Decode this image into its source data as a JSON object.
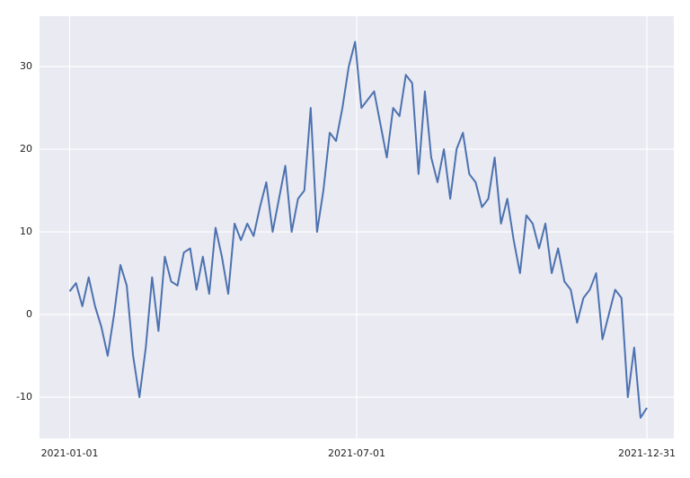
{
  "chart_data": {
    "type": "line",
    "x": [
      "2021-01-01",
      "2021-01-05",
      "2021-01-09",
      "2021-01-13",
      "2021-01-17",
      "2021-01-21",
      "2021-01-25",
      "2021-01-29",
      "2021-02-02",
      "2021-02-06",
      "2021-02-10",
      "2021-02-14",
      "2021-02-18",
      "2021-02-22",
      "2021-02-26",
      "2021-03-02",
      "2021-03-06",
      "2021-03-10",
      "2021-03-14",
      "2021-03-18",
      "2021-03-22",
      "2021-03-26",
      "2021-03-30",
      "2021-04-03",
      "2021-04-07",
      "2021-04-11",
      "2021-04-15",
      "2021-04-19",
      "2021-04-23",
      "2021-04-27",
      "2021-05-01",
      "2021-05-05",
      "2021-05-09",
      "2021-05-13",
      "2021-05-17",
      "2021-05-21",
      "2021-05-25",
      "2021-05-29",
      "2021-06-02",
      "2021-06-06",
      "2021-06-10",
      "2021-06-14",
      "2021-06-18",
      "2021-06-22",
      "2021-06-26",
      "2021-06-30",
      "2021-07-04",
      "2021-07-08",
      "2021-07-12",
      "2021-07-16",
      "2021-07-20",
      "2021-07-24",
      "2021-07-28",
      "2021-08-01",
      "2021-08-05",
      "2021-08-09",
      "2021-08-13",
      "2021-08-17",
      "2021-08-21",
      "2021-08-25",
      "2021-08-29",
      "2021-09-02",
      "2021-09-06",
      "2021-09-10",
      "2021-09-14",
      "2021-09-18",
      "2021-09-22",
      "2021-09-26",
      "2021-09-30",
      "2021-10-04",
      "2021-10-08",
      "2021-10-12",
      "2021-10-16",
      "2021-10-20",
      "2021-10-24",
      "2021-10-28",
      "2021-11-01",
      "2021-11-05",
      "2021-11-09",
      "2021-11-13",
      "2021-11-17",
      "2021-11-21",
      "2021-11-25",
      "2021-11-29",
      "2021-12-03",
      "2021-12-07",
      "2021-12-11",
      "2021-12-15",
      "2021-12-19",
      "2021-12-23",
      "2021-12-27",
      "2021-12-31"
    ],
    "series": [
      {
        "color": "#4c72b0",
        "values": [
          2.8,
          3.8,
          1,
          4.5,
          1,
          -1.5,
          -5,
          0,
          6,
          3.5,
          -5,
          -10,
          -4,
          4.5,
          -2,
          7,
          4,
          3.5,
          7.5,
          8,
          3,
          7,
          2.5,
          10.5,
          7,
          2.5,
          11,
          9,
          11,
          9.5,
          13,
          16,
          10,
          14,
          18,
          10,
          14,
          15,
          25,
          10,
          15,
          22,
          21,
          25,
          30,
          33,
          25,
          26,
          27,
          23,
          19,
          25,
          24,
          29,
          28,
          17,
          27,
          19,
          16,
          20,
          14,
          20,
          22,
          17,
          16,
          13,
          14,
          19,
          11,
          14,
          9,
          5,
          12,
          11,
          8,
          11,
          5,
          8,
          4,
          3,
          -1,
          2,
          3,
          5,
          -3,
          0,
          3,
          2,
          -10,
          -4,
          -12.5,
          -11.3
        ]
      }
    ],
    "xlim": [
      "2020-12-13",
      "2022-01-17"
    ],
    "xticks": [
      "2021-01-01",
      "2021-07-01",
      "2021-12-31"
    ],
    "ylim": [
      -15,
      36.1
    ],
    "yticks": [
      -10,
      0,
      10,
      20,
      30
    ],
    "grid": true
  }
}
